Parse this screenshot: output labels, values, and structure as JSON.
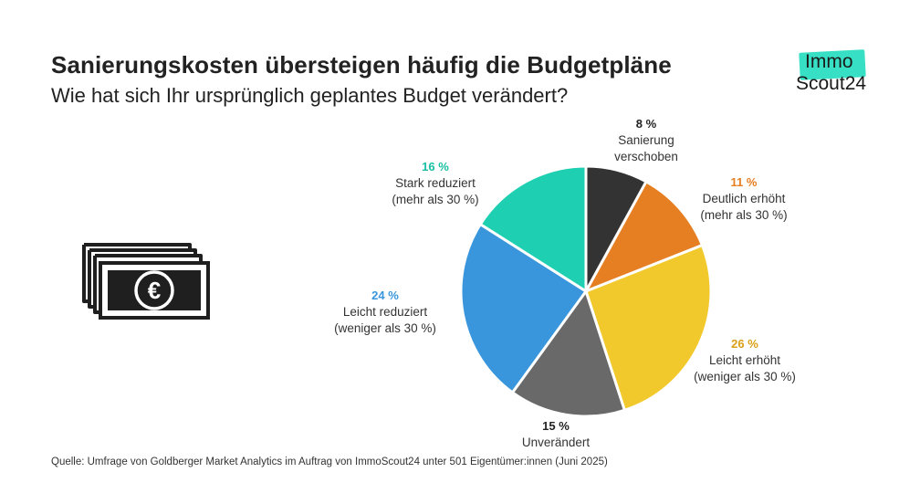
{
  "header": {
    "title": "Sanierungskosten übersteigen häufig die Budgetpläne",
    "subtitle": "Wie hat sich Ihr ursprünglich geplantes Budget verändert?"
  },
  "logo": {
    "line1": "Immo",
    "line2": "Scout24",
    "badge_color": "#37e0c4"
  },
  "icon": {
    "name": "money-stack-euro-icon",
    "symbol": "€"
  },
  "chart_data": {
    "type": "pie",
    "start": "top",
    "direction": "clockwise",
    "slices": [
      {
        "pct_label": "8 %",
        "value": 8,
        "label_lines": [
          "Sanierung",
          "verschoben"
        ],
        "color": "#333333",
        "label_color": "#222222"
      },
      {
        "pct_label": "11 %",
        "value": 11,
        "label_lines": [
          "Deutlich erhöht",
          "(mehr als 30 %)"
        ],
        "color": "#e67e22",
        "label_color": "#e67e22"
      },
      {
        "pct_label": "26 %",
        "value": 26,
        "label_lines": [
          "Leicht erhöht",
          "(weniger als 30 %)"
        ],
        "color": "#f2c92c",
        "label_color": "#d9a017"
      },
      {
        "pct_label": "15 %",
        "value": 15,
        "label_lines": [
          "Unverändert"
        ],
        "color": "#696969",
        "label_color": "#222222"
      },
      {
        "pct_label": "24 %",
        "value": 24,
        "label_lines": [
          "Leicht reduziert",
          "(weniger als 30 %)"
        ],
        "color": "#3996dc",
        "label_color": "#3996dc"
      },
      {
        "pct_label": "16 %",
        "value": 16,
        "label_lines": [
          "Stark reduziert",
          "(mehr als 30 %)"
        ],
        "color": "#1fcfb2",
        "label_color": "#17bfa3"
      }
    ]
  },
  "footer": {
    "source": "Quelle: Umfrage von Goldberger Market Analytics im Auftrag von ImmoScout24 unter 501 Eigentümer:innen (Juni 2025)"
  }
}
